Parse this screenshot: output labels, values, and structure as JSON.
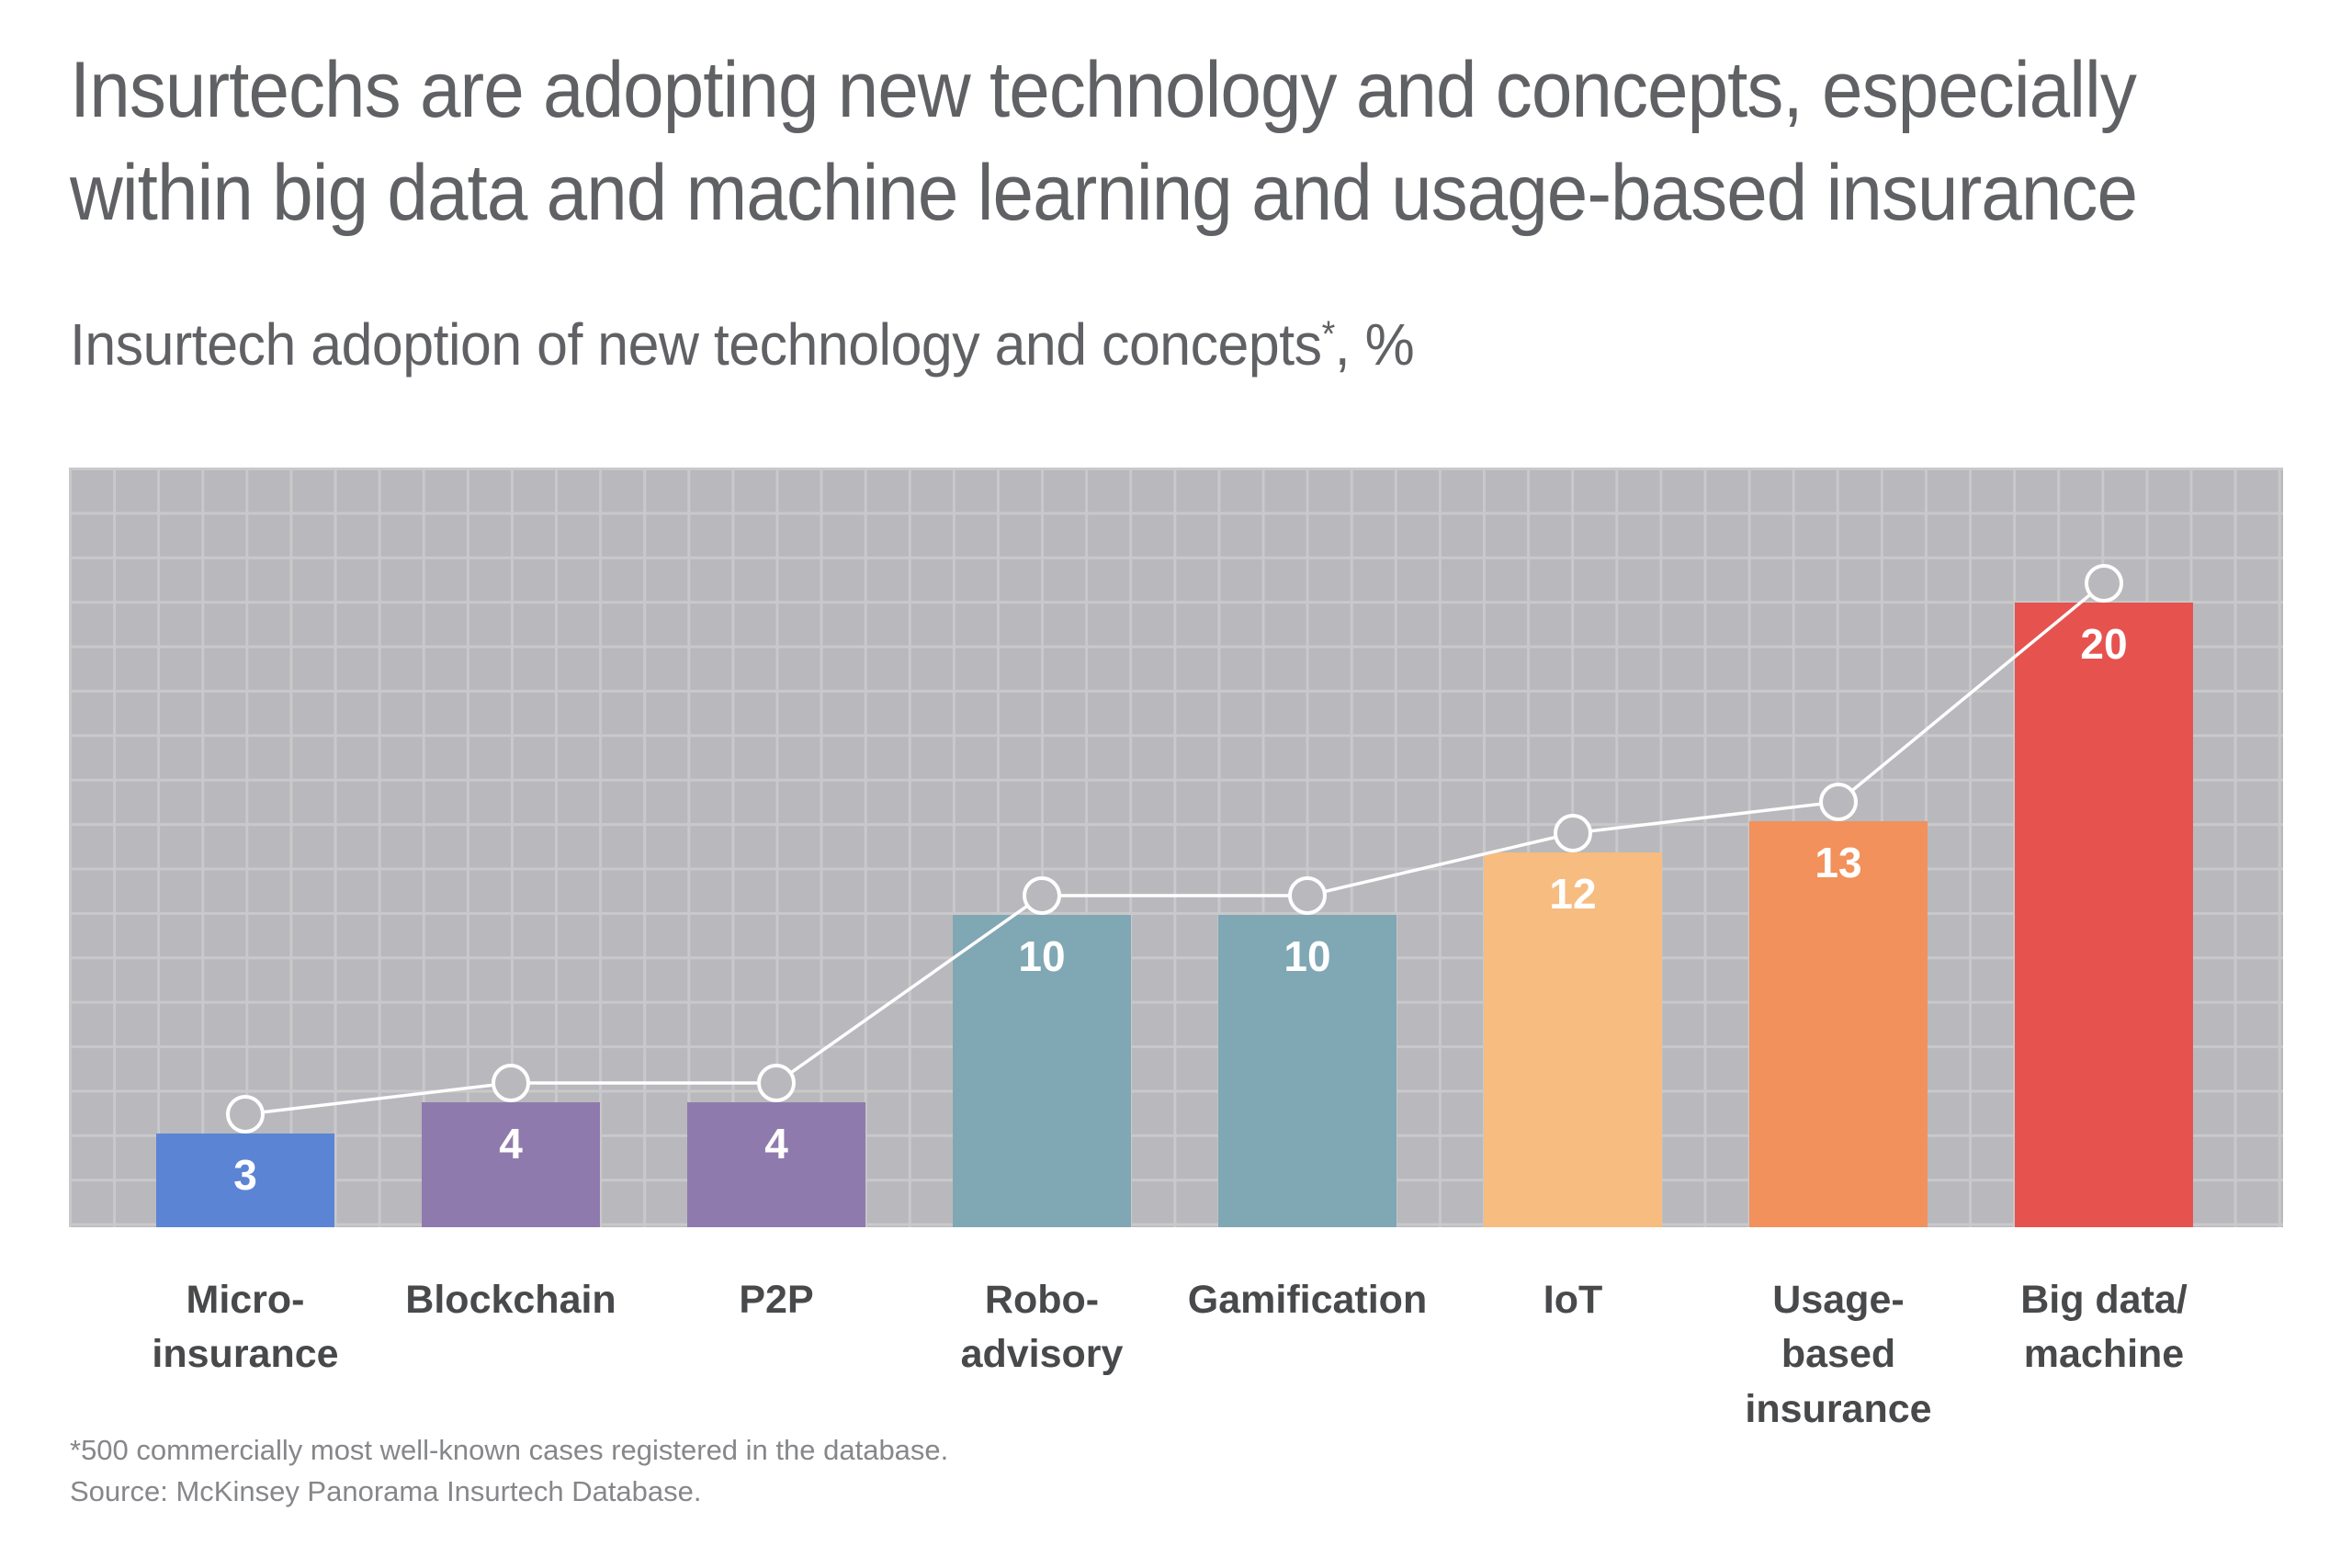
{
  "page": {
    "title_line1": "Insurtechs are adopting new technology and concepts, especially",
    "title_line2": "within big data and machine learning and usage-based insurance",
    "subtitle_text": "Insurtech adoption of new technology and concepts",
    "subtitle_asterisk": "*",
    "subtitle_unit": ", %",
    "footnote": "*500 commercially most well-known cases registered in the database.",
    "source": "Source: McKinsey Panorama Insurtech Database."
  },
  "colors": {
    "chart_background": "#b9b8bc",
    "gridline": "#c9c9cc",
    "trend_line": "#ffffff",
    "marker_fill": "#b9b8bc",
    "marker_stroke": "#ffffff",
    "value_label": "#ffffff",
    "title_text": "#606164",
    "category_text": "#48494b",
    "footnote_text": "#86878a"
  },
  "chart_data": {
    "type": "bar",
    "title": "Insurtechs are adopting new technology and concepts, especially within big data and machine learning and usage-based insurance",
    "subtitle": "Insurtech adoption of new technology and concepts*, %",
    "categories": [
      "Micro-\ninsurance",
      "Blockchain",
      "P2P",
      "Robo-\nadvisory",
      "Gamification",
      "IoT",
      "Usage-\nbased\ninsurance",
      "Big data/\nmachine"
    ],
    "values": [
      3,
      4,
      4,
      10,
      10,
      12,
      13,
      20
    ],
    "value_labels": [
      "3",
      "4",
      "4",
      "10",
      "10",
      "12",
      "13",
      "20"
    ],
    "bar_colors": [
      "#5b84d4",
      "#8f7aad",
      "#8f7aad",
      "#80a7b4",
      "#80a7b4",
      "#f6bc80",
      "#f2915c",
      "#e6534f"
    ],
    "overlay": "line-with-circle-markers",
    "xlabel": "",
    "ylabel": "",
    "ylim": [
      0,
      24
    ],
    "grid": true,
    "legend": "none",
    "footnote": "*500 commercially most well-known cases registered in the database.",
    "source": "Source: McKinsey Panorama Insurtech Database."
  }
}
